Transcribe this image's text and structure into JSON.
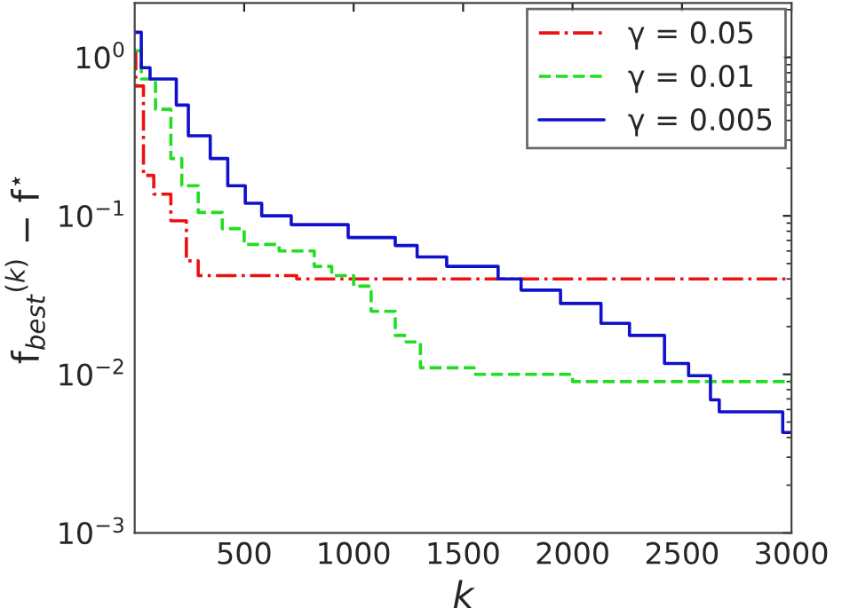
{
  "chart_data": {
    "type": "step",
    "xlabel": "k",
    "ylabel": "f$_{best}$$^{(k)}$ − f$^{⋆}$",
    "log": "y",
    "xlim": [
      0,
      3000
    ],
    "xticks": [
      500,
      1000,
      1500,
      2000,
      2500,
      3000
    ],
    "ylim": [
      0.001,
      2.2
    ],
    "yticks": [
      {
        "value": 0.001,
        "label": "10$^{−3}$"
      },
      {
        "value": 0.01,
        "label": "10$^{−2}$"
      },
      {
        "value": 0.1,
        "label": "10$^{−1}$"
      },
      {
        "value": 1,
        "label": "10$^{0}$"
      }
    ],
    "grid": false,
    "legend": "top right",
    "series": [
      {
        "name": "γ = 0.05",
        "color": "#ee1111",
        "line_style": "dashdot",
        "x": [
          1,
          5,
          40,
          87,
          165,
          236,
          290,
          740,
          3000
        ],
        "values": [
          1.1,
          0.66,
          0.18,
          0.137,
          0.093,
          0.052,
          0.042,
          0.04,
          0.04
        ]
      },
      {
        "name": "γ = 0.01",
        "color": "#22dd22",
        "line_style": "dashed",
        "x": [
          1,
          30,
          95,
          165,
          215,
          290,
          400,
          500,
          660,
          820,
          900,
          1000,
          1080,
          1190,
          1240,
          1305,
          1550,
          2000,
          3000
        ],
        "values": [
          1.1,
          0.73,
          0.47,
          0.23,
          0.155,
          0.105,
          0.083,
          0.066,
          0.06,
          0.048,
          0.042,
          0.036,
          0.025,
          0.0176,
          0.016,
          0.011,
          0.01,
          0.009,
          0.009
        ]
      },
      {
        "name": "γ = 0.005",
        "color": "#1111cc",
        "line_style": "solid",
        "x": [
          1,
          30,
          70,
          190,
          245,
          345,
          425,
          505,
          580,
          715,
          975,
          1190,
          1290,
          1425,
          1660,
          1765,
          1945,
          2130,
          2260,
          2420,
          2530,
          2630,
          2670,
          2960,
          3000
        ],
        "values": [
          1.44,
          0.86,
          0.73,
          0.5,
          0.32,
          0.23,
          0.155,
          0.12,
          0.1,
          0.088,
          0.073,
          0.065,
          0.055,
          0.048,
          0.04,
          0.034,
          0.028,
          0.021,
          0.0176,
          0.0117,
          0.0098,
          0.0069,
          0.0058,
          0.0043,
          0.0043
        ]
      }
    ]
  }
}
